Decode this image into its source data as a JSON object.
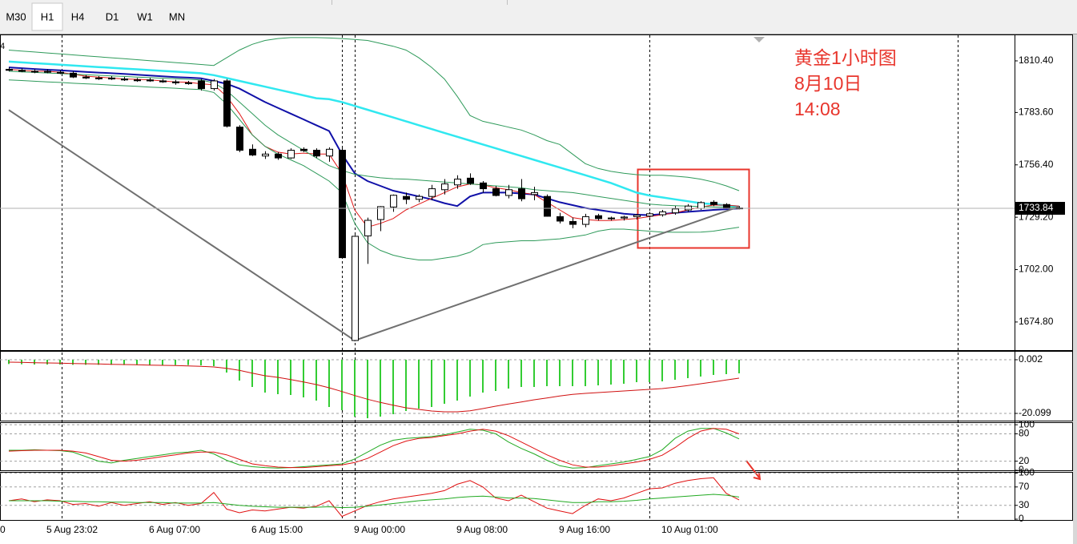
{
  "toolbar": {
    "buttons": [
      "M30",
      "H1",
      "H4",
      "D1",
      "W1",
      "MN"
    ],
    "active": "H1"
  },
  "chart_data": [
    {
      "type": "candlestick",
      "header": "4",
      "annotation": [
        "黄金1小时图",
        "8月10日",
        "14:08"
      ],
      "categories": [
        "0",
        null,
        null,
        "5 Aug 23:02",
        null,
        null,
        null,
        null,
        null,
        null,
        null,
        "6 Aug 07:00",
        null,
        null,
        null,
        null,
        null,
        null,
        null,
        "6 Aug 15:00",
        null,
        null,
        null,
        null,
        null,
        null,
        null,
        "9 Aug 00:00",
        null,
        null,
        null,
        null,
        null,
        null,
        null,
        "9 Aug 08:00",
        null,
        null,
        null,
        null,
        null,
        null,
        null,
        "9 Aug 16:00",
        null,
        null,
        null,
        null,
        null,
        null,
        null,
        "10 Aug 01:00",
        null,
        null,
        null,
        null,
        null,
        null
      ],
      "open": [
        1806,
        1805.5,
        1805,
        1805,
        1804.5,
        1804,
        1802,
        1801.5,
        1801.5,
        1801,
        1800.5,
        1800.5,
        1800,
        1799.5,
        1799,
        1800,
        1796,
        1800,
        1776,
        1764.5,
        1761,
        1762,
        1760,
        1764.5,
        1764,
        1761,
        1764,
        1665.2,
        1719.5,
        1728,
        1734.5,
        1740,
        1738.5,
        1740,
        1743.5,
        1746,
        1749.5,
        1747,
        1744,
        1740.5,
        1744,
        1741,
        1740,
        1729.5,
        1727,
        1725.5,
        1730,
        1728.5,
        1728.8,
        1729.5,
        1729.8,
        1730.5,
        1731.5,
        1733,
        1733.8,
        1737,
        1735.8,
        1734
      ],
      "high": [
        1807,
        1806.5,
        1806,
        1806,
        1805.5,
        1805,
        1803,
        1802.5,
        1802.5,
        1802,
        1801.5,
        1801.5,
        1801,
        1800.5,
        1800,
        1801,
        1801,
        1801,
        1777,
        1767,
        1763.5,
        1763,
        1765,
        1765.5,
        1765,
        1765.5,
        1765.5,
        1720,
        1729,
        1735,
        1741,
        1742,
        1741,
        1746,
        1749,
        1751,
        1752,
        1748,
        1745.5,
        1746,
        1749,
        1745,
        1741,
        1731.5,
        1729,
        1731,
        1731,
        1729.5,
        1730,
        1731,
        1732,
        1733,
        1735,
        1736,
        1737.5,
        1738,
        1736.5,
        1735
      ],
      "low": [
        1805,
        1804.5,
        1804,
        1804,
        1803.5,
        1801.5,
        1801,
        1800.5,
        1800.5,
        1800,
        1799.5,
        1799.5,
        1799,
        1798,
        1798,
        1795,
        1795,
        1775.8,
        1763,
        1761,
        1759.5,
        1759,
        1759.5,
        1763,
        1760,
        1758,
        1708,
        1665,
        1705,
        1722,
        1732,
        1736,
        1737,
        1738,
        1741,
        1744,
        1746,
        1742,
        1740,
        1739,
        1737.5,
        1738,
        1729.5,
        1726,
        1723.5,
        1724,
        1727.5,
        1727.5,
        1727.5,
        1728,
        1729,
        1729.5,
        1730.5,
        1732,
        1733,
        1735,
        1733.5,
        1733.3
      ],
      "close": [
        1805.5,
        1805,
        1805,
        1804.5,
        1804,
        1802,
        1801.5,
        1801.5,
        1801,
        1800.5,
        1800.5,
        1800,
        1799.5,
        1799,
        1799,
        1796,
        1800,
        1776.5,
        1764,
        1761.5,
        1762,
        1760,
        1764,
        1763.8,
        1761,
        1764.5,
        1708.2,
        1719.3,
        1727.6,
        1734.7,
        1740.6,
        1738.5,
        1740,
        1744,
        1746.5,
        1749,
        1746.8,
        1744,
        1740.5,
        1743.5,
        1738.8,
        1742,
        1729.7,
        1727.2,
        1725.5,
        1729.5,
        1728.5,
        1728.8,
        1729.3,
        1730.3,
        1731,
        1732,
        1733.5,
        1735,
        1736.8,
        1735.8,
        1734,
        1733.84
      ],
      "up_color": "#ffffff",
      "down_color": "#000000",
      "series": [
        {
          "color": "#30e8f0",
          "width": 2.5,
          "values": [
            1810,
            1809.6,
            1809.2,
            1808.8,
            1808.4,
            1808,
            1807.6,
            1807.2,
            1806.8,
            1806.4,
            1806,
            1805.6,
            1805.2,
            1804.8,
            1804.4,
            1804,
            1803,
            1801.5,
            1800,
            1798.5,
            1797,
            1795.5,
            1794,
            1792.5,
            1791,
            1790.5,
            1789,
            1787,
            1785,
            1783,
            1781,
            1779,
            1777,
            1775,
            1773,
            1771,
            1769,
            1767,
            1765,
            1763,
            1761,
            1759,
            1757,
            1755,
            1753,
            1751,
            1749,
            1747,
            1744.5,
            1742,
            1740.5,
            1739.5,
            1738.5,
            1737.5,
            1736.5,
            1736,
            1735.3,
            1734.7
          ]
        },
        {
          "color": "#1010a8",
          "width": 2,
          "values": [
            1807,
            1806.6,
            1806.2,
            1805.8,
            1805.5,
            1805.1,
            1804.7,
            1804.3,
            1804,
            1803.6,
            1803.2,
            1802.8,
            1802.4,
            1802,
            1801.7,
            1801.3,
            1800,
            1798.5,
            1796,
            1792.5,
            1789,
            1786,
            1783,
            1780,
            1777,
            1774,
            1762,
            1752,
            1748,
            1745.5,
            1743,
            1741.5,
            1740,
            1738.5,
            1736.5,
            1735,
            1740,
            1742,
            1742,
            1742,
            1741.5,
            1741,
            1739,
            1737,
            1735.5,
            1734,
            1733,
            1732,
            1731,
            1730.5,
            1730.3,
            1730.8,
            1731.5,
            1732,
            1732.5,
            1733,
            1733.4,
            1733.8
          ]
        },
        {
          "color": "#e01818",
          "width": 1,
          "values": [
            1806,
            1805.5,
            1805,
            1805,
            1804.5,
            1803.5,
            1802.5,
            1802,
            1801.5,
            1801,
            1800.8,
            1800.5,
            1800,
            1799.5,
            1799.3,
            1798.5,
            1798,
            1792,
            1783,
            1772,
            1766,
            1763,
            1762,
            1762.5,
            1762,
            1762,
            1752,
            1733,
            1724,
            1726,
            1728.5,
            1733,
            1736,
            1739,
            1742,
            1745,
            1746.5,
            1746,
            1744.5,
            1743.5,
            1742,
            1741,
            1737,
            1733,
            1729,
            1728,
            1727.5,
            1727.5,
            1728,
            1728.5,
            1729.5,
            1730.5,
            1731.5,
            1733,
            1734.5,
            1735.5,
            1735.5,
            1735
          ]
        },
        {
          "color": "#2e9a5a",
          "width": 1,
          "values": [
            1816,
            1815.5,
            1815,
            1814.5,
            1814,
            1813.5,
            1813,
            1812.5,
            1812,
            1811.5,
            1811,
            1810.5,
            1810,
            1809.5,
            1809,
            1808.5,
            1808,
            1812,
            1816,
            1819,
            1821,
            1822,
            1822.5,
            1822.5,
            1822.5,
            1822.3,
            1822,
            1821.5,
            1821,
            1819.5,
            1818,
            1816,
            1812,
            1807,
            1801,
            1792,
            1782,
            1779,
            1777.5,
            1776,
            1774.5,
            1772,
            1769,
            1767,
            1762,
            1757,
            1754.5,
            1753,
            1752,
            1751.3,
            1751,
            1751,
            1750.5,
            1750,
            1749,
            1747.5,
            1745.5,
            1743
          ]
        },
        {
          "color": "#2e9a5a",
          "width": 1,
          "values": [
            1805,
            1804.7,
            1804.4,
            1804.1,
            1803.8,
            1803.5,
            1803.2,
            1802.9,
            1802.6,
            1802.3,
            1802,
            1801.7,
            1801.4,
            1801.1,
            1800.8,
            1800.5,
            1799,
            1795,
            1789,
            1783,
            1777,
            1772,
            1768,
            1764,
            1760,
            1756,
            1753.5,
            1751.5,
            1750.5,
            1749.7,
            1749.2,
            1749,
            1748.5,
            1748,
            1747.5,
            1747,
            1746.5,
            1746,
            1745.5,
            1745,
            1744.5,
            1743.5,
            1743,
            1742.5,
            1742,
            1741,
            1740,
            1739,
            1738,
            1737,
            1736,
            1735.5,
            1735.2,
            1735,
            1734.8,
            1734.6,
            1734.4,
            1734.2
          ]
        },
        {
          "color": "#2e9a5a",
          "width": 1,
          "values": [
            1800.5,
            1800.2,
            1799.8,
            1799.5,
            1799.2,
            1798.8,
            1798.5,
            1798.2,
            1797.8,
            1797.5,
            1797.2,
            1796.8,
            1796.5,
            1796.2,
            1795.8,
            1795.5,
            1794,
            1788,
            1780,
            1772,
            1766,
            1762,
            1759,
            1756,
            1752,
            1748,
            1742,
            1726,
            1716,
            1712,
            1709.5,
            1708,
            1707,
            1707,
            1708,
            1709,
            1711,
            1715,
            1716,
            1716.5,
            1717,
            1717,
            1717.5,
            1718,
            1719,
            1720,
            1722,
            1723,
            1723,
            1722.5,
            1722,
            1721.5,
            1721.4,
            1721.4,
            1721.5,
            1722,
            1723,
            1724
          ]
        }
      ],
      "zigzag": {
        "color": "#707070",
        "x": [
          0,
          27,
          57
        ],
        "values": [
          1784.9,
          1665.2,
          1734.7
        ]
      },
      "current_price": 1733.84,
      "price_line_color": "#b0b0b0",
      "ylim": [
        1660.2,
        1823.7
      ],
      "yticks": [
        {
          "value": 1810.4,
          "label": "1810.40"
        },
        {
          "value": 1783.6,
          "label": "1783.60"
        },
        {
          "value": 1756.4,
          "label": "1756.40"
        },
        {
          "value": 1729.2,
          "label": "1729.20"
        },
        {
          "value": 1702,
          "label": "1702.00"
        },
        {
          "value": 1674.8,
          "label": "1674.80"
        }
      ],
      "grid": false
    },
    {
      "type": "bar",
      "ylim": [
        -22.5,
        2.7
      ],
      "yticks": [
        0.002,
        -20.099
      ],
      "grid": true,
      "series": [
        {
          "type": "bar",
          "color": "#33cc33",
          "values": [
            -1.6,
            -1.7,
            -1.8,
            -1.8,
            -1.8,
            -1.9,
            -1.9,
            -1.9,
            -1.9,
            -2,
            -2,
            -2,
            -2,
            -2,
            -2,
            -2.1,
            -2.4,
            -4.8,
            -7.8,
            -10.2,
            -12.3,
            -12.9,
            -13.2,
            -14.1,
            -15.3,
            -17.7,
            -18.9,
            -21.3,
            -21.9,
            -21.3,
            -20.4,
            -19.2,
            -18.3,
            -17.7,
            -16.5,
            -15.3,
            -13.8,
            -12.3,
            -11.7,
            -10.8,
            -10.2,
            -10.2,
            -9.9,
            -9.9,
            -9.9,
            -9.9,
            -9.6,
            -9.3,
            -9,
            -8.4,
            -8.4,
            -8.1,
            -7.5,
            -6.9,
            -6.3,
            -5.7,
            -5.4,
            -5.1
          ]
        },
        {
          "type": "line",
          "color": "#d01010",
          "values": [
            -0.9,
            -1,
            -1.1,
            -1.2,
            -1.3,
            -1.4,
            -1.5,
            -1.6,
            -1.7,
            -1.8,
            -1.9,
            -2,
            -2.1,
            -2.2,
            -2.3,
            -2.5,
            -2.7,
            -3.2,
            -4,
            -5,
            -6,
            -6.6,
            -7.4,
            -8.3,
            -9.3,
            -10.5,
            -11.9,
            -13.4,
            -14.8,
            -16,
            -17,
            -18,
            -18.6,
            -19.2,
            -19.5,
            -19.5,
            -19.1,
            -18.3,
            -17.4,
            -16.6,
            -15.8,
            -15,
            -14.3,
            -13.6,
            -13,
            -12.6,
            -12.3,
            -12,
            -11.7,
            -11.4,
            -11.1,
            -10.8,
            -10.3,
            -9.7,
            -9,
            -8.3,
            -7.6,
            -6.9
          ]
        }
      ]
    },
    {
      "type": "line",
      "ylim": [
        0,
        102
      ],
      "yticks": [
        100,
        80,
        20,
        0
      ],
      "grid": true,
      "series": [
        {
          "type": "line",
          "color": "#22aa22",
          "values": [
            44,
            44,
            45,
            44,
            43,
            40,
            30,
            20,
            16,
            22,
            26,
            30,
            34,
            38,
            40,
            44,
            36,
            22,
            12,
            8,
            6,
            5,
            6,
            8,
            10,
            12,
            14,
            25,
            40,
            55,
            66,
            70,
            72,
            74,
            78,
            84,
            90,
            88,
            80,
            62,
            48,
            36,
            22,
            10,
            5,
            6,
            10,
            14,
            18,
            24,
            30,
            45,
            70,
            86,
            92,
            92,
            82,
            69
          ]
        },
        {
          "type": "line",
          "color": "#e01010",
          "values": [
            42,
            43,
            44,
            44,
            44,
            42,
            38,
            30,
            22,
            20,
            22,
            26,
            30,
            34,
            38,
            40,
            40,
            34,
            24,
            14,
            10,
            7,
            6,
            6,
            8,
            10,
            12,
            17,
            26,
            40,
            54,
            64,
            70,
            72,
            76,
            80,
            86,
            90,
            86,
            76,
            62,
            48,
            34,
            22,
            12,
            7,
            7,
            10,
            14,
            18,
            24,
            33,
            50,
            70,
            86,
            92,
            90,
            80
          ]
        }
      ]
    },
    {
      "type": "line",
      "ylim": [
        0,
        101
      ],
      "yticks": [
        100,
        70,
        30,
        0
      ],
      "grid": true,
      "series": [
        {
          "type": "line",
          "color": "#e01010",
          "values": [
            40,
            44,
            38,
            42,
            40,
            32,
            34,
            28,
            36,
            30,
            34,
            38,
            32,
            36,
            30,
            34,
            58,
            22,
            14,
            20,
            18,
            22,
            26,
            24,
            28,
            40,
            6,
            18,
            30,
            38,
            44,
            48,
            52,
            56,
            62,
            76,
            84,
            70,
            46,
            40,
            52,
            38,
            24,
            18,
            12,
            30,
            44,
            40,
            46,
            56,
            66,
            68,
            78,
            84,
            88,
            90,
            56,
            42
          ]
        },
        {
          "type": "line",
          "color": "#22aa22",
          "values": [
            40,
            40,
            40,
            40,
            39,
            39,
            38,
            38,
            37,
            37,
            36,
            36,
            36,
            35,
            35,
            35,
            36,
            33,
            30,
            28,
            27,
            26,
            26,
            26,
            26,
            27,
            25,
            26,
            28,
            31,
            34,
            37,
            40,
            42,
            44,
            47,
            49,
            50,
            48,
            46,
            46,
            45,
            42,
            39,
            36,
            36,
            38,
            38,
            39,
            41,
            44,
            46,
            48,
            50,
            52,
            54,
            52,
            48
          ]
        }
      ]
    }
  ]
}
